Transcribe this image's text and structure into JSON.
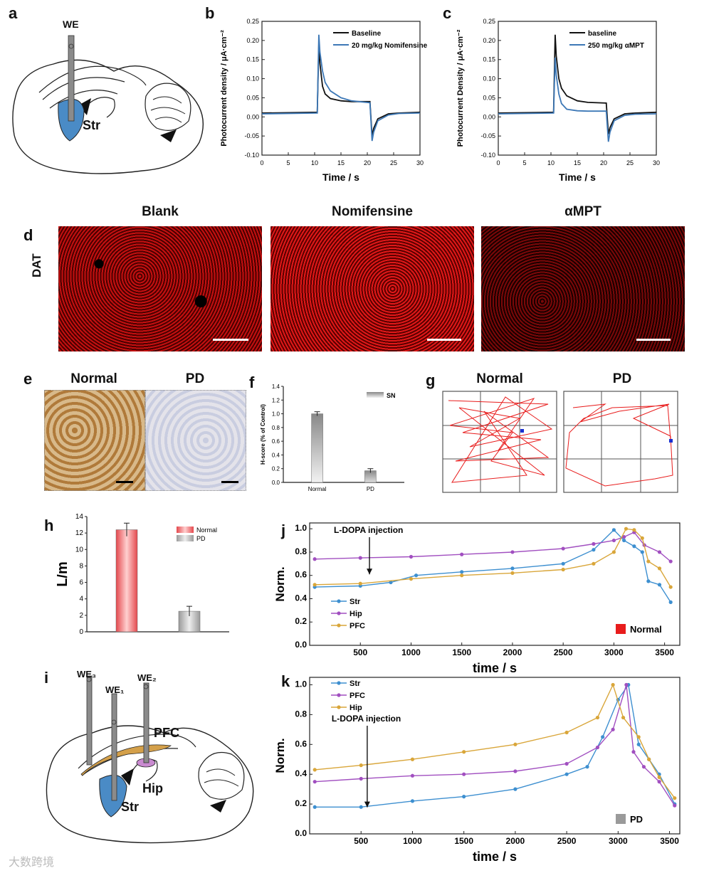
{
  "labels": {
    "a": "a",
    "b": "b",
    "c": "c",
    "d": "d",
    "e": "e",
    "f": "f",
    "g": "g",
    "h": "h",
    "i": "i",
    "j": "j",
    "k": "k"
  },
  "panel_a": {
    "electrode": "WE",
    "region": "Str"
  },
  "panel_i": {
    "we1": "WE₁",
    "we2": "WE₂",
    "we3": "WE₃",
    "pfc": "PFC",
    "hip": "Hip",
    "str": "Str"
  },
  "panel_d": {
    "row_label": "DAT",
    "titles": [
      "Blank",
      "Nomifensine",
      "αMPT"
    ]
  },
  "panel_e": {
    "titles": [
      "Normal",
      "PD"
    ]
  },
  "panel_g": {
    "titles": [
      "Normal",
      "PD"
    ]
  },
  "watermark": "大数跨境",
  "colors": {
    "blue": "#3d78b6",
    "black": "#111111",
    "red": "#e81c1c",
    "purple": "#a14fc0",
    "gold": "#d9a63a",
    "pbar_red": "#e4484d",
    "pbar_gray": "#9a9a9a"
  },
  "chart_data": [
    {
      "id": "b",
      "type": "line",
      "ylabel": "Photocurrent density / μA·cm⁻²",
      "xlabel": "Time / s",
      "xlim": [
        0,
        30
      ],
      "ylim": [
        -0.1,
        0.25
      ],
      "xticks": [
        0,
        5,
        10,
        15,
        20,
        25,
        30
      ],
      "yticks": [
        -0.1,
        -0.05,
        0.0,
        0.05,
        0.1,
        0.15,
        0.2,
        0.25
      ],
      "ytick_labels": [
        "-0.10",
        "-0.05",
        "0.00",
        "0.05",
        "0.10",
        "0.15",
        "0.20",
        "0.25"
      ],
      "series": [
        {
          "name": "Baseline",
          "color": "#111111",
          "x": [
            0,
            10.5,
            10.8,
            11,
            11.5,
            12,
            13,
            15,
            17,
            20.5,
            20.9,
            21.2,
            22,
            24,
            26,
            30
          ],
          "y": [
            0.01,
            0.012,
            0.19,
            0.14,
            0.08,
            0.06,
            0.048,
            0.042,
            0.04,
            0.04,
            -0.05,
            -0.03,
            -0.005,
            0.008,
            0.01,
            0.012
          ]
        },
        {
          "name": "20 mg/kg Nomifensine",
          "color": "#3d78b6",
          "x": [
            0,
            10.5,
            10.8,
            11,
            11.5,
            12,
            13,
            15,
            17,
            20.5,
            20.9,
            21.2,
            22,
            24,
            26,
            30
          ],
          "y": [
            0.008,
            0.01,
            0.215,
            0.17,
            0.12,
            0.09,
            0.068,
            0.05,
            0.042,
            0.037,
            -0.063,
            -0.04,
            -0.01,
            0.005,
            0.009,
            0.01
          ]
        }
      ]
    },
    {
      "id": "c",
      "type": "line",
      "ylabel": "Photocurrent Density / μA·cm⁻²",
      "xlabel": "Time / s",
      "xlim": [
        0,
        30
      ],
      "ylim": [
        -0.1,
        0.25
      ],
      "xticks": [
        0,
        5,
        10,
        15,
        20,
        25,
        30
      ],
      "yticks": [
        -0.1,
        -0.05,
        0.0,
        0.05,
        0.1,
        0.15,
        0.2,
        0.25
      ],
      "ytick_labels": [
        "-0.10",
        "-0.05",
        "0.00",
        "0.05",
        "0.10",
        "0.15",
        "0.20",
        "0.25"
      ],
      "series": [
        {
          "name": "baseline",
          "color": "#111111",
          "x": [
            0,
            10.5,
            10.8,
            11,
            11.5,
            12,
            13,
            15,
            17,
            20.5,
            20.9,
            21.2,
            22,
            24,
            26,
            30
          ],
          "y": [
            0.01,
            0.012,
            0.215,
            0.16,
            0.1,
            0.075,
            0.055,
            0.042,
            0.038,
            0.036,
            -0.045,
            -0.028,
            -0.005,
            0.008,
            0.01,
            0.012
          ]
        },
        {
          "name": "250 mg/kg αMPT",
          "color": "#3d78b6",
          "x": [
            0,
            10.5,
            10.8,
            11,
            11.5,
            12,
            13,
            15,
            17,
            20.5,
            20.9,
            21.2,
            22,
            24,
            26,
            30
          ],
          "y": [
            0.008,
            0.01,
            0.155,
            0.11,
            0.06,
            0.035,
            0.02,
            0.016,
            0.015,
            0.015,
            -0.065,
            -0.04,
            -0.01,
            0.004,
            0.007,
            0.008
          ]
        }
      ]
    },
    {
      "id": "f",
      "type": "bar",
      "ylabel": "H-score (% of Control)",
      "legend": "SN",
      "categories": [
        "Normal",
        "PD"
      ],
      "values": [
        1.0,
        0.17
      ],
      "errors": [
        0.03,
        0.03
      ],
      "ylim": [
        0,
        1.4
      ],
      "yticks": [
        0.0,
        0.2,
        0.4,
        0.6,
        0.8,
        1.0,
        1.2,
        1.4
      ],
      "ytick_labels": [
        "0.0",
        "0.2",
        "0.4",
        "0.6",
        "0.8",
        "1.0",
        "1.2",
        "1.4"
      ]
    },
    {
      "id": "h",
      "type": "bar",
      "ylabel": "L/m",
      "categories": [
        "Normal",
        "PD"
      ],
      "values": [
        12.4,
        2.5
      ],
      "errors": [
        0.8,
        0.6
      ],
      "ylim": [
        0,
        14
      ],
      "yticks": [
        0,
        2,
        4,
        6,
        8,
        10,
        12,
        14
      ],
      "ytick_labels": [
        "0",
        "2",
        "4",
        "6",
        "8",
        "10",
        "12",
        "14"
      ]
    },
    {
      "id": "j",
      "type": "line",
      "xlabel": "time / s",
      "ylabel": "Norm.",
      "xlim": [
        0,
        3650
      ],
      "ylim": [
        0.0,
        1.05
      ],
      "xticks": [
        500,
        1000,
        1500,
        2000,
        2500,
        3000,
        3500
      ],
      "yticks": [
        0.0,
        0.2,
        0.4,
        0.6,
        0.8,
        1.0
      ],
      "ytick_labels": [
        "0.0",
        "0.2",
        "0.4",
        "0.6",
        "0.8",
        "1.0"
      ],
      "annotation": "L-DOPA injection",
      "annotation_x": 590,
      "legend_tag": "Normal",
      "series": [
        {
          "name": "Str",
          "color": "#3d8fd0",
          "x": [
            50,
            500,
            800,
            1050,
            1500,
            2000,
            2500,
            2800,
            3000,
            3100,
            3200,
            3280,
            3340,
            3450,
            3560
          ],
          "y": [
            0.5,
            0.51,
            0.54,
            0.6,
            0.63,
            0.66,
            0.7,
            0.82,
            0.99,
            0.9,
            0.85,
            0.8,
            0.55,
            0.52,
            0.37
          ]
        },
        {
          "name": "Hip",
          "color": "#a14fc0",
          "x": [
            50,
            500,
            1000,
            1500,
            2000,
            2500,
            2800,
            3000,
            3100,
            3200,
            3300,
            3450,
            3560
          ],
          "y": [
            0.74,
            0.75,
            0.76,
            0.78,
            0.8,
            0.83,
            0.87,
            0.9,
            0.93,
            0.97,
            0.86,
            0.8,
            0.72
          ]
        },
        {
          "name": "PFC",
          "color": "#d9a63a",
          "x": [
            50,
            500,
            1000,
            1500,
            2000,
            2500,
            2800,
            3000,
            3120,
            3200,
            3280,
            3340,
            3450,
            3560
          ],
          "y": [
            0.52,
            0.53,
            0.57,
            0.6,
            0.62,
            0.65,
            0.7,
            0.8,
            1.0,
            0.99,
            0.92,
            0.72,
            0.66,
            0.5
          ]
        }
      ]
    },
    {
      "id": "k",
      "type": "line",
      "xlabel": "time / s",
      "ylabel": "Norm.",
      "xlim": [
        0,
        3600
      ],
      "ylim": [
        0.0,
        1.05
      ],
      "xticks": [
        500,
        1000,
        1500,
        2000,
        2500,
        3000,
        3500
      ],
      "yticks": [
        0.0,
        0.2,
        0.4,
        0.6,
        0.8,
        1.0
      ],
      "ytick_labels": [
        "0.0",
        "0.2",
        "0.4",
        "0.6",
        "0.8",
        "1.0"
      ],
      "annotation": "L-DOPA injection",
      "annotation_x": 560,
      "legend_tag": "PD",
      "series": [
        {
          "name": "Str",
          "color": "#3d8fd0",
          "x": [
            50,
            500,
            1000,
            1500,
            2000,
            2500,
            2700,
            2850,
            3000,
            3100,
            3200,
            3300,
            3400,
            3550
          ],
          "y": [
            0.18,
            0.18,
            0.22,
            0.25,
            0.3,
            0.4,
            0.45,
            0.65,
            0.9,
            1.0,
            0.6,
            0.5,
            0.4,
            0.2
          ]
        },
        {
          "name": "PFC",
          "color": "#a14fc0",
          "x": [
            50,
            500,
            1000,
            1500,
            2000,
            2500,
            2800,
            2950,
            3080,
            3150,
            3250,
            3400,
            3550
          ],
          "y": [
            0.35,
            0.37,
            0.39,
            0.4,
            0.42,
            0.47,
            0.58,
            0.7,
            1.0,
            0.55,
            0.45,
            0.35,
            0.19
          ]
        },
        {
          "name": "Hip",
          "color": "#d9a63a",
          "x": [
            50,
            500,
            1000,
            1500,
            2000,
            2500,
            2800,
            2950,
            3050,
            3200,
            3300,
            3400,
            3550
          ],
          "y": [
            0.43,
            0.46,
            0.5,
            0.55,
            0.6,
            0.68,
            0.78,
            1.0,
            0.78,
            0.65,
            0.5,
            0.38,
            0.24
          ]
        }
      ]
    }
  ]
}
